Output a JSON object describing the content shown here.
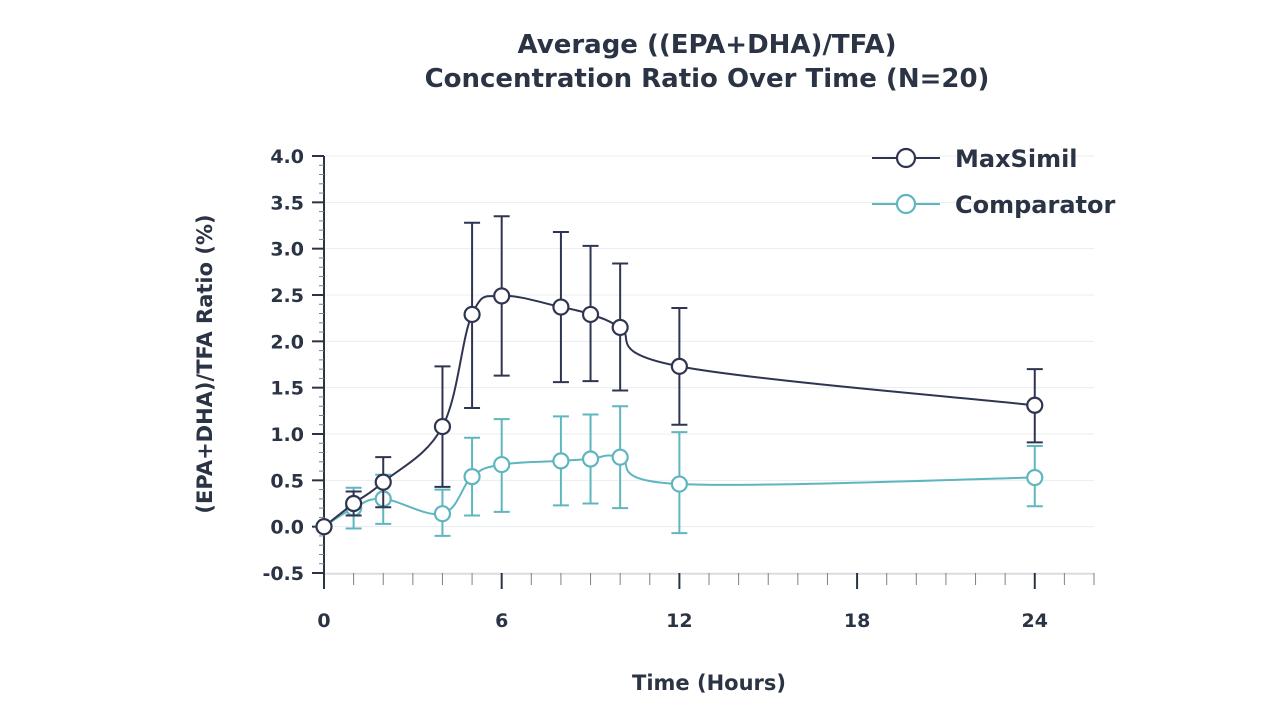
{
  "chart_data": {
    "type": "line",
    "title_line1": "Average ((EPA+DHA)/TFA)",
    "title_line2": "Concentration Ratio Over Time (N=20)",
    "xlabel": "Time (Hours)",
    "ylabel": "(EPA+DHA)/TFA Ratio (%)",
    "xlim": [
      0,
      26
    ],
    "ylim": [
      -0.5,
      4.0
    ],
    "x_ticks": [
      0,
      6,
      12,
      18,
      24
    ],
    "y_ticks": [
      -0.5,
      0.0,
      0.5,
      1.0,
      1.5,
      2.0,
      2.5,
      3.0,
      3.5,
      4.0
    ],
    "y_tick_labels": [
      "-0.5",
      "0.0",
      "0.5",
      "1.0",
      "1.5",
      "2.0",
      "2.5",
      "3.0",
      "3.5",
      "4.0"
    ],
    "grid": true,
    "legend_position": "top-right",
    "series": [
      {
        "name": "MaxSimil",
        "color": "#2f3550",
        "x": [
          0,
          1,
          2,
          4,
          5,
          6,
          8,
          9,
          10,
          12,
          24
        ],
        "y": [
          0.0,
          0.25,
          0.48,
          1.08,
          2.29,
          2.49,
          2.37,
          2.29,
          2.15,
          1.73,
          1.31
        ],
        "err_low": [
          0.0,
          0.13,
          0.27,
          0.65,
          1.01,
          0.86,
          0.81,
          0.72,
          0.68,
          0.63,
          0.4
        ],
        "err_high": [
          0.0,
          0.13,
          0.27,
          0.65,
          0.99,
          0.86,
          0.81,
          0.74,
          0.69,
          0.63,
          0.39
        ]
      },
      {
        "name": "Comparator",
        "color": "#5fb6bf",
        "x": [
          0,
          1,
          2,
          4,
          5,
          6,
          8,
          9,
          10,
          12,
          24
        ],
        "y": [
          0.0,
          0.2,
          0.3,
          0.14,
          0.54,
          0.67,
          0.71,
          0.73,
          0.75,
          0.46,
          0.53
        ],
        "err_low": [
          0.0,
          0.22,
          0.27,
          0.24,
          0.42,
          0.51,
          0.48,
          0.48,
          0.55,
          0.53,
          0.31
        ],
        "err_high": [
          0.0,
          0.22,
          0.26,
          0.26,
          0.42,
          0.49,
          0.48,
          0.48,
          0.55,
          0.56,
          0.34
        ]
      }
    ]
  }
}
